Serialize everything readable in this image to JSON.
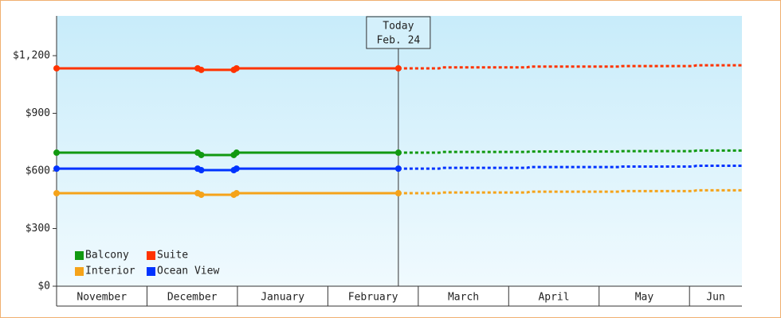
{
  "chart_data": {
    "type": "line",
    "categories": [
      "November",
      "December",
      "January",
      "February",
      "March",
      "April",
      "May",
      "Jun"
    ],
    "xticks": [
      0,
      1,
      2,
      3,
      4,
      5,
      6,
      7
    ],
    "xlim": [
      0,
      7.58
    ],
    "ylim": [
      0,
      1407
    ],
    "yticks": [
      {
        "value": 0,
        "label": "$0"
      },
      {
        "value": 300,
        "label": "$300"
      },
      {
        "value": 600,
        "label": "$600"
      },
      {
        "value": 900,
        "label": "$900"
      },
      {
        "value": 1200,
        "label": "$1,200"
      }
    ],
    "x": [
      0,
      1.56,
      1.6,
      1.96,
      1.99,
      3.78
    ],
    "forecast_x": [
      3.78,
      4.23,
      4.27,
      5.2,
      5.24,
      6.22,
      6.26,
      7.04,
      7.08,
      7.58
    ],
    "series": [
      {
        "name": "Balcony",
        "color": "#119911",
        "values": [
          695,
          695,
          683,
          683,
          695,
          695
        ],
        "forecast": [
          695,
          695,
          699,
          699,
          701,
          701,
          703,
          703,
          706,
          706
        ]
      },
      {
        "name": "Suite",
        "color": "#ff3300",
        "values": [
          1134,
          1134,
          1126,
          1126,
          1134,
          1134
        ],
        "forecast": [
          1134,
          1134,
          1139,
          1139,
          1143,
          1143,
          1146,
          1146,
          1150,
          1150
        ]
      },
      {
        "name": "Interior",
        "color": "#f5a31a",
        "values": [
          484,
          484,
          476,
          476,
          484,
          484
        ],
        "forecast": [
          484,
          484,
          488,
          488,
          492,
          492,
          495,
          495,
          499,
          499
        ]
      },
      {
        "name": "Ocean View",
        "color": "#0033ff",
        "values": [
          612,
          612,
          604,
          604,
          612,
          612
        ],
        "forecast": [
          612,
          612,
          616,
          616,
          620,
          620,
          623,
          623,
          627,
          627
        ]
      }
    ],
    "annotation": {
      "x": 3.78,
      "lines": [
        "Today",
        "Feb. 24"
      ]
    }
  }
}
